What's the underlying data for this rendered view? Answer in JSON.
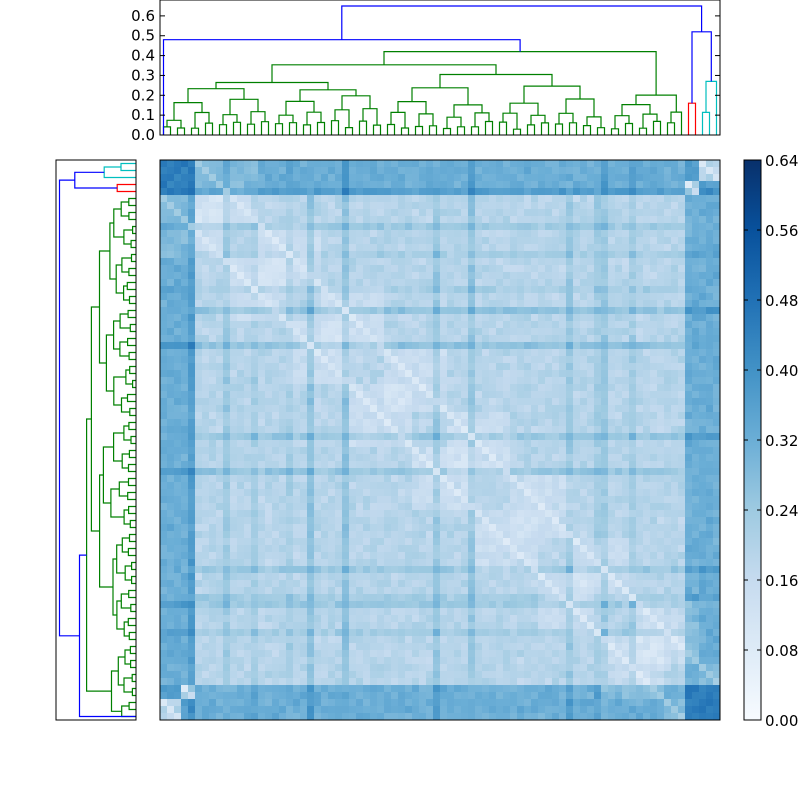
{
  "chart_data": {
    "type": "heatmap",
    "title": "",
    "matrix_size": 80,
    "color_map": "Blues",
    "value_range": [
      0,
      0.64
    ],
    "colorbar": {
      "ticks": [
        0.0,
        0.08,
        0.16,
        0.24,
        0.32,
        0.4,
        0.48,
        0.56,
        0.64
      ],
      "tick_labels": [
        "0.00",
        "0.08",
        "0.16",
        "0.24",
        "0.32",
        "0.40",
        "0.48",
        "0.56",
        "0.64"
      ],
      "placement": "right"
    },
    "row_groups": [
      {
        "name": "cluster-cyan",
        "color": "#00bfbf",
        "size": 3,
        "level": 0.55
      },
      {
        "name": "cluster-red",
        "color": "#ff0000",
        "size": 2,
        "level": 0.5
      },
      {
        "name": "cluster-green",
        "color": "#008000",
        "size": 75,
        "level": 0.22
      }
    ],
    "top_dendrogram": {
      "placement": "top",
      "ylim": [
        0,
        0.68
      ],
      "yticks": [
        0.0,
        0.1,
        0.2,
        0.3,
        0.4,
        0.5,
        0.6
      ],
      "ytick_labels": [
        "0.0",
        "0.1",
        "0.2",
        "0.3",
        "0.4",
        "0.5",
        "0.6"
      ],
      "link_colors": {
        "root": "#0000ff",
        "group_a": "#008000",
        "group_b": "#ff0000",
        "group_c": "#00bfbf"
      },
      "main_merges": [
        {
          "height": 0.65,
          "color": "#0000ff"
        },
        {
          "height": 0.48,
          "color": "#0000ff"
        },
        {
          "height": 0.52,
          "color": "#0000ff"
        },
        {
          "height": 0.42,
          "color": "#008000"
        },
        {
          "height": 0.37,
          "color": "#008000"
        },
        {
          "height": 0.32,
          "color": "#008000"
        },
        {
          "height": 0.31,
          "color": "#008000"
        },
        {
          "height": 0.27,
          "color": "#00bfbf"
        },
        {
          "height": 0.16,
          "color": "#ff0000"
        }
      ]
    },
    "left_dendrogram": {
      "placement": "left",
      "link_colors": {
        "root": "#0000ff",
        "group_a": "#008000",
        "group_b": "#ff0000",
        "group_c": "#00bfbf"
      }
    },
    "cluster_order": {
      "top": [
        "green",
        "red",
        "cyan"
      ],
      "left": [
        "cyan",
        "red",
        "green"
      ]
    }
  }
}
